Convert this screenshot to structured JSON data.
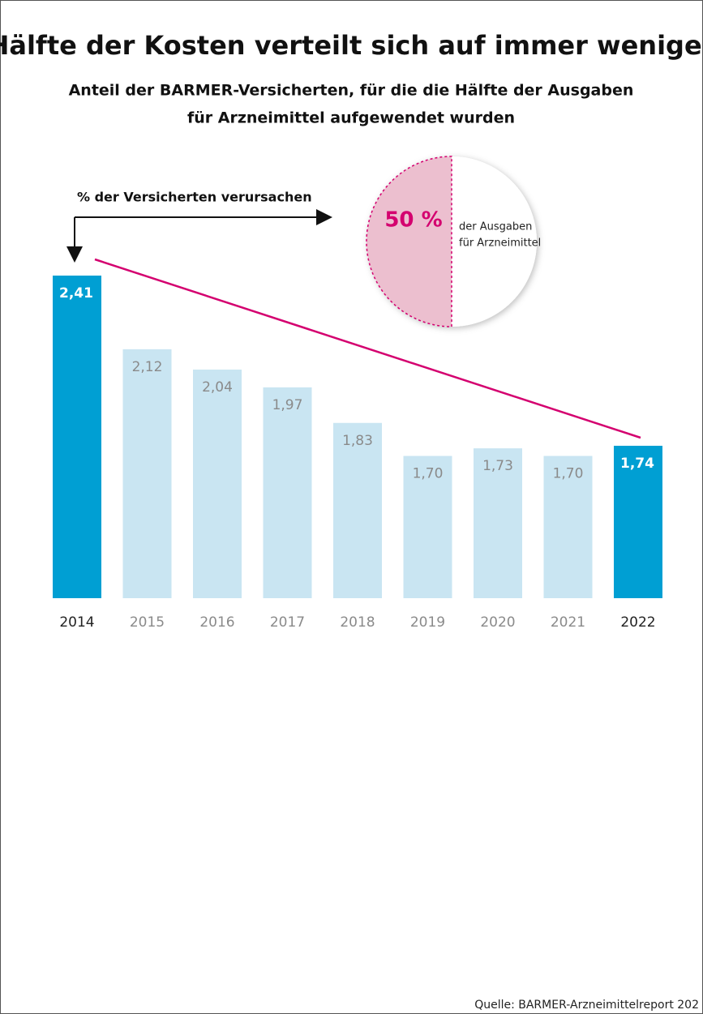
{
  "chart_data": {
    "type": "bar",
    "title": "Hälfte der Kosten verteilt sich auf immer weniger",
    "subtitle": [
      "Anteil der BARMER-Versicherten, für die die Hälfte der Ausgaben",
      "für Arzneimittel aufgewendet wurden"
    ],
    "annotation": "% der Versicherten verursachen",
    "categories": [
      "2014",
      "2015",
      "2016",
      "2017",
      "2018",
      "2019",
      "2020",
      "2021",
      "2022"
    ],
    "values": [
      2.41,
      2.12,
      2.04,
      1.97,
      1.83,
      1.7,
      1.73,
      1.7,
      1.74
    ],
    "value_labels": [
      "2,41",
      "2,12",
      "2,04",
      "1,97",
      "1,83",
      "1,70",
      "1,73",
      "1,70",
      "1,74"
    ],
    "colors": [
      "#009fd3",
      "#c9e5f2",
      "#c9e5f2",
      "#c9e5f2",
      "#c9e5f2",
      "#c9e5f2",
      "#c9e5f2",
      "#c9e5f2",
      "#009fd3"
    ],
    "text_colors": [
      "#222222",
      "#8a8a8a",
      "#8a8a8a",
      "#8a8a8a",
      "#8a8a8a",
      "#8a8a8a",
      "#8a8a8a",
      "#8a8a8a",
      "#222222"
    ],
    "ylim": [
      1.14,
      2.41
    ],
    "pie": {
      "value": 50,
      "label": "50 %",
      "text": [
        "der Ausgaben",
        "für Arzneimittel"
      ],
      "color": "#ecbfcf",
      "edge": "#d4006f"
    },
    "trend_color": "#d4006f",
    "source": "Quelle: BARMER-Arzneimittelreport 202"
  }
}
